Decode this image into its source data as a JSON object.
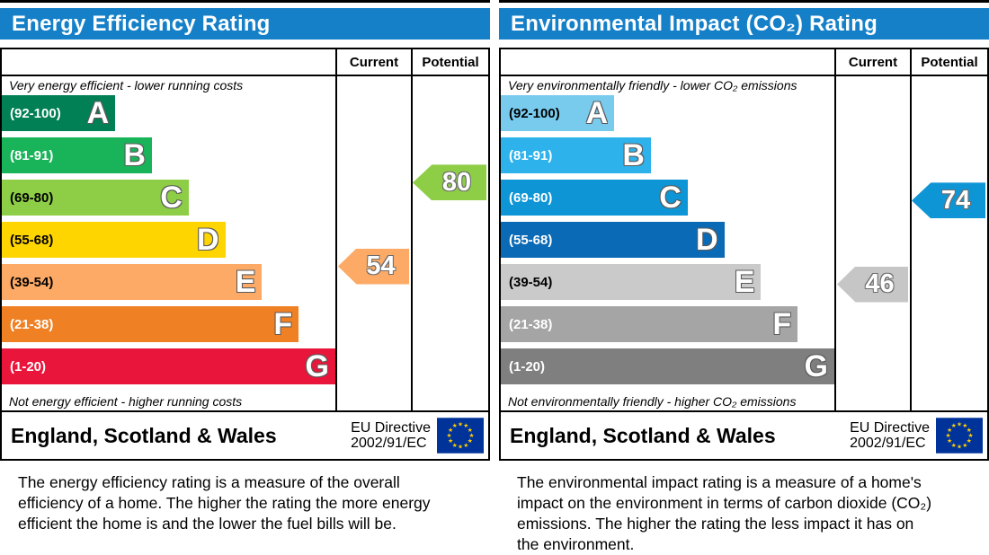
{
  "panels": [
    {
      "title": "Energy Efficiency Rating",
      "columns": {
        "current": "Current",
        "potential": "Potential"
      },
      "top_caption": "Very energy efficient - lower running costs",
      "bottom_caption": "Not energy efficient - higher running costs",
      "bands": [
        {
          "letter": "A",
          "range": "(92-100)",
          "lo": 92,
          "hi": 100,
          "color": "#008054",
          "label_color": "#ffffff"
        },
        {
          "letter": "B",
          "range": "(81-91)",
          "lo": 81,
          "hi": 91,
          "color": "#19b459",
          "label_color": "#ffffff"
        },
        {
          "letter": "C",
          "range": "(69-80)",
          "lo": 69,
          "hi": 80,
          "color": "#8dce46",
          "label_color": "#000000"
        },
        {
          "letter": "D",
          "range": "(55-68)",
          "lo": 55,
          "hi": 68,
          "color": "#ffd500",
          "label_color": "#000000"
        },
        {
          "letter": "E",
          "range": "(39-54)",
          "lo": 39,
          "hi": 54,
          "color": "#fcaa65",
          "label_color": "#000000"
        },
        {
          "letter": "F",
          "range": "(21-38)",
          "lo": 21,
          "hi": 38,
          "color": "#ef8023",
          "label_color": "#ffffff"
        },
        {
          "letter": "G",
          "range": "(1-20)",
          "lo": 1,
          "hi": 20,
          "color": "#e9153b",
          "label_color": "#ffffff"
        }
      ],
      "current": {
        "value": 54,
        "color": "#fcaa65"
      },
      "potential": {
        "value": 80,
        "color": "#8dce46"
      },
      "footer": {
        "region": "England, Scotland & Wales",
        "directive_line1": "EU Directive",
        "directive_line2": "2002/91/EC",
        "flag_blue": "#003399",
        "flag_star_color": "#ffcc00"
      },
      "description": "The energy efficiency rating is a measure of the overall efficiency of a home. The higher the rating the more energy efficient the home is and the lower the fuel bills will be."
    },
    {
      "title": "Environmental Impact (CO₂) Rating",
      "columns": {
        "current": "Current",
        "potential": "Potential"
      },
      "top_caption": "Very environmentally friendly - lower CO₂ emissions",
      "bottom_caption": "Not environmentally friendly - higher CO₂ emissions",
      "bands": [
        {
          "letter": "A",
          "range": "(92-100)",
          "lo": 92,
          "hi": 100,
          "color": "#79cbee",
          "label_color": "#000000"
        },
        {
          "letter": "B",
          "range": "(81-91)",
          "lo": 81,
          "hi": 91,
          "color": "#2eb2ec",
          "label_color": "#ffffff"
        },
        {
          "letter": "C",
          "range": "(69-80)",
          "lo": 69,
          "hi": 80,
          "color": "#0d95d5",
          "label_color": "#ffffff"
        },
        {
          "letter": "D",
          "range": "(55-68)",
          "lo": 55,
          "hi": 68,
          "color": "#0b6ab5",
          "label_color": "#ffffff"
        },
        {
          "letter": "E",
          "range": "(39-54)",
          "lo": 39,
          "hi": 54,
          "color": "#cacaca",
          "label_color": "#000000"
        },
        {
          "letter": "F",
          "range": "(21-38)",
          "lo": 21,
          "hi": 38,
          "color": "#a5a5a5",
          "label_color": "#ffffff"
        },
        {
          "letter": "G",
          "range": "(1-20)",
          "lo": 1,
          "hi": 20,
          "color": "#7f7f7f",
          "label_color": "#ffffff"
        }
      ],
      "current": {
        "value": 46,
        "color": "#c6c6c6"
      },
      "potential": {
        "value": 74,
        "color": "#0d95d5"
      },
      "footer": {
        "region": "England, Scotland & Wales",
        "directive_line1": "EU Directive",
        "directive_line2": "2002/91/EC",
        "flag_blue": "#003399",
        "flag_star_color": "#ffcc00"
      },
      "description": "The environmental impact rating is a measure of a home's impact on the environment in terms of carbon dioxide (CO₂) emissions. The higher the rating the less impact it has on the environment."
    }
  ],
  "chart_data": [
    {
      "type": "bar",
      "title": "Energy Efficiency Rating",
      "categories": [
        "A (92-100)",
        "B (81-91)",
        "C (69-80)",
        "D (55-68)",
        "E (39-54)",
        "F (21-38)",
        "G (1-20)"
      ],
      "bar_lengths_pct": [
        34,
        45,
        56,
        67,
        78,
        89,
        100
      ],
      "current_rating": 54,
      "current_band": "E",
      "potential_rating": 80,
      "potential_band": "C",
      "legend_position": "columns-right",
      "annotations": [
        "Very energy efficient - lower running costs",
        "Not energy efficient - higher running costs",
        "England, Scotland & Wales",
        "EU Directive 2002/91/EC"
      ]
    },
    {
      "type": "bar",
      "title": "Environmental Impact (CO₂) Rating",
      "categories": [
        "A (92-100)",
        "B (81-91)",
        "C (69-80)",
        "D (55-68)",
        "E (39-54)",
        "F (21-38)",
        "G (1-20)"
      ],
      "bar_lengths_pct": [
        34,
        45,
        56,
        67,
        78,
        89,
        100
      ],
      "current_rating": 46,
      "current_band": "E",
      "potential_rating": 74,
      "potential_band": "C",
      "legend_position": "columns-right",
      "annotations": [
        "Very environmentally friendly - lower CO₂ emissions",
        "Not environmentally friendly - higher CO₂ emissions",
        "England, Scotland & Wales",
        "EU Directive 2002/91/EC"
      ]
    }
  ]
}
